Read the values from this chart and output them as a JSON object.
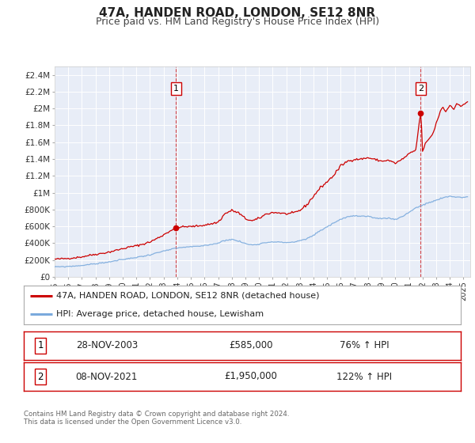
{
  "title": "47A, HANDEN ROAD, LONDON, SE12 8NR",
  "subtitle": "Price paid vs. HM Land Registry's House Price Index (HPI)",
  "ylim": [
    0,
    2500000
  ],
  "yticks": [
    0,
    200000,
    400000,
    600000,
    800000,
    1000000,
    1200000,
    1400000,
    1600000,
    1800000,
    2000000,
    2200000,
    2400000
  ],
  "ytick_labels": [
    "£0",
    "£200K",
    "£400K",
    "£600K",
    "£800K",
    "£1M",
    "£1.2M",
    "£1.4M",
    "£1.6M",
    "£1.8M",
    "£2M",
    "£2.2M",
    "£2.4M"
  ],
  "xlim_start": 1995.0,
  "xlim_end": 2025.5,
  "xtick_years": [
    1995,
    1996,
    1997,
    1998,
    1999,
    2000,
    2001,
    2002,
    2003,
    2004,
    2005,
    2006,
    2007,
    2008,
    2009,
    2010,
    2011,
    2012,
    2013,
    2014,
    2015,
    2016,
    2017,
    2018,
    2019,
    2020,
    2021,
    2022,
    2023,
    2024,
    2025
  ],
  "fig_bg_color": "#ffffff",
  "plot_bg_color": "#e8edf7",
  "grid_color": "#ffffff",
  "red_line_color": "#cc0000",
  "blue_line_color": "#7aaadd",
  "marker1_date": 2003.91,
  "marker1_value": 585000,
  "marker2_date": 2021.86,
  "marker2_value": 1950000,
  "vline1_x": 2003.91,
  "vline2_x": 2021.86,
  "legend_label_red": "47A, HANDEN ROAD, LONDON, SE12 8NR (detached house)",
  "legend_label_blue": "HPI: Average price, detached house, Lewisham",
  "table_rows": [
    {
      "num": "1",
      "date": "28-NOV-2003",
      "price": "£585,000",
      "hpi": "76% ↑ HPI"
    },
    {
      "num": "2",
      "date": "08-NOV-2021",
      "price": "£1,950,000",
      "hpi": "122% ↑ HPI"
    }
  ],
  "footer_line1": "Contains HM Land Registry data © Crown copyright and database right 2024.",
  "footer_line2": "This data is licensed under the Open Government Licence v3.0."
}
